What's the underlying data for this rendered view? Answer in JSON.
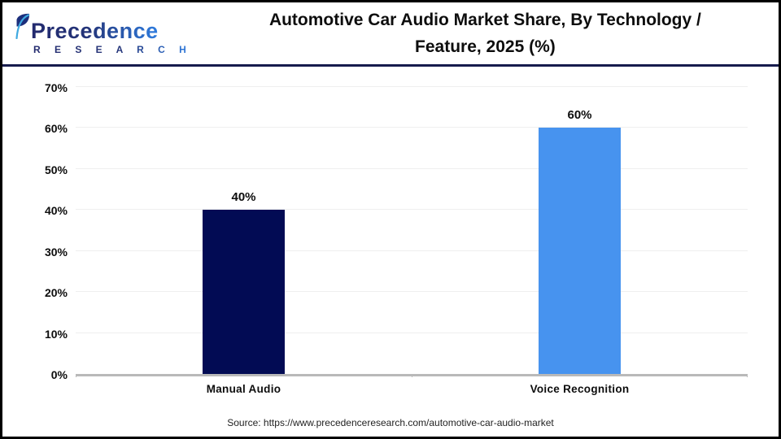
{
  "header": {
    "logo": {
      "brand_line1": "Precedence",
      "brand_line2": "R E S E A R C H"
    },
    "title_line1": "Automotive Car Audio Market Share, By Technology /",
    "title_line2": "Feature, 2025 (%)"
  },
  "chart_data": {
    "type": "bar",
    "title": "Automotive Car Audio Market Share, By Technology / Feature, 2025 (%)",
    "categories": [
      "Manual Audio",
      "Voice Recognition"
    ],
    "values": [
      40,
      60
    ],
    "value_labels": [
      "40%",
      "60%"
    ],
    "bar_colors": [
      "#020b54",
      "#4793ef"
    ],
    "ylim": [
      0,
      70
    ],
    "yticks": [
      0,
      10,
      20,
      30,
      40,
      50,
      60,
      70
    ],
    "ytick_labels": [
      "0%",
      "10%",
      "20%",
      "30%",
      "40%",
      "50%",
      "60%",
      "70%"
    ],
    "grid": true,
    "legend": false,
    "xlabel": "",
    "ylabel": ""
  },
  "footer": {
    "source": "Source: https://www.precedenceresearch.com/automotive-car-audio-market"
  },
  "colors": {
    "separator": "#171b4d",
    "grid": "#efefef",
    "axis": "#b9b9b9",
    "logo_dark": "#232a6e",
    "logo_light": "#2f7de0",
    "leaf_dark": "#1c2f7c",
    "leaf_light": "#3fa9e0"
  }
}
